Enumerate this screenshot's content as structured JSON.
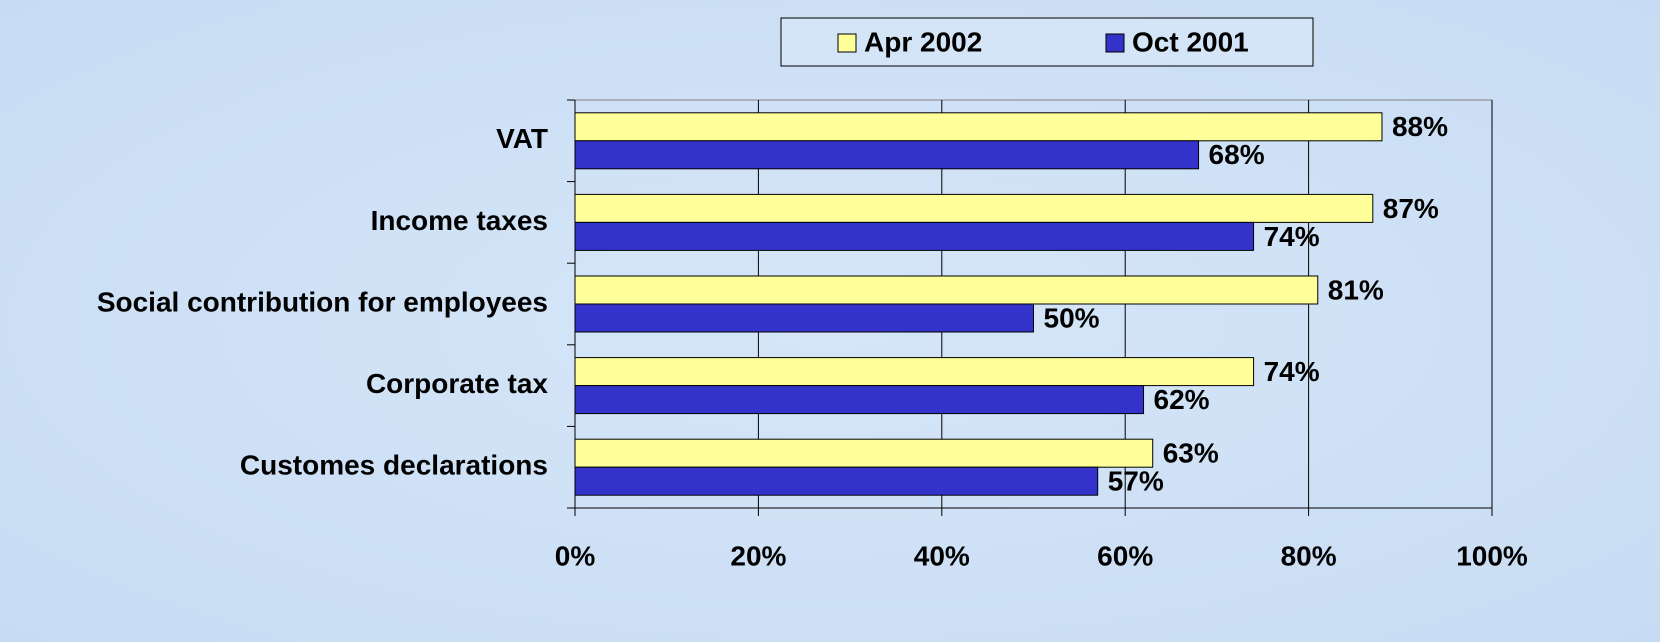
{
  "chart_data": {
    "type": "bar",
    "orientation": "horizontal",
    "categories": [
      "VAT",
      "Income taxes",
      "Social contribution for employees",
      "Corporate tax",
      "Customes declarations"
    ],
    "series": [
      {
        "name": "Apr 2002",
        "color": "#ffff99",
        "values": [
          88,
          87,
          81,
          74,
          63
        ],
        "value_labels": [
          "88%",
          "87%",
          "81%",
          "74%",
          "63%"
        ]
      },
      {
        "name": "Oct 2001",
        "color": "#3333cc",
        "values": [
          68,
          74,
          50,
          62,
          57
        ],
        "value_labels": [
          "68%",
          "74%",
          "50%",
          "62%",
          "57%"
        ]
      }
    ],
    "xlim": [
      0,
      100
    ],
    "xticks": [
      {
        "value": 0,
        "label": "0%"
      },
      {
        "value": 20,
        "label": "20%"
      },
      {
        "value": 40,
        "label": "40%"
      },
      {
        "value": 60,
        "label": "60%"
      },
      {
        "value": 80,
        "label": "80%"
      },
      {
        "value": 100,
        "label": "100%"
      }
    ],
    "grid": true,
    "legend": "top"
  }
}
